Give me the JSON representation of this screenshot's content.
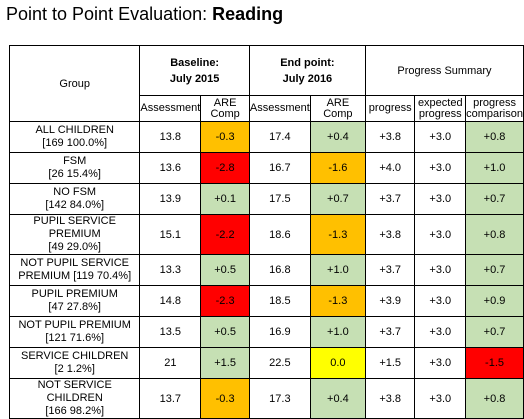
{
  "title": {
    "prefix": "Point to Point Evaluation: ",
    "emphasis": "Reading"
  },
  "headers": {
    "group": "Group",
    "baseline_l1": "Baseline:",
    "baseline_l2": "July 2015",
    "endpoint_l1": "End point:",
    "endpoint_l2": "July 2016",
    "summary": "Progress Summary",
    "sub": [
      "Assessment",
      "ARE Comp",
      "Assessment",
      "ARE Comp",
      "progress",
      "expected progress",
      "progress comparison"
    ]
  },
  "colors": {
    "green": "#c6e0b4",
    "orange": "#ffc000",
    "red": "#ff0000",
    "yellow": "#ffff00"
  },
  "rows": [
    {
      "l1": "ALL CHILDREN",
      "l2": "[169 100.0%]",
      "v": [
        "13.8",
        "-0.3",
        "17.4",
        "+0.4",
        "+3.8",
        "+3.0",
        "+0.8"
      ],
      "c": [
        "white",
        "orange",
        "white",
        "green",
        "white",
        "white",
        "green"
      ]
    },
    {
      "l1": "FSM",
      "l2": "[26 15.4%]",
      "v": [
        "13.6",
        "-2.8",
        "16.7",
        "-1.6",
        "+4.0",
        "+3.0",
        "+1.0"
      ],
      "c": [
        "white",
        "red",
        "white",
        "orange",
        "white",
        "white",
        "green"
      ]
    },
    {
      "l1": "NO FSM",
      "l2": "[142 84.0%]",
      "v": [
        "13.9",
        "+0.1",
        "17.5",
        "+0.7",
        "+3.7",
        "+3.0",
        "+0.7"
      ],
      "c": [
        "white",
        "green",
        "white",
        "green",
        "white",
        "white",
        "green"
      ]
    },
    {
      "l1": "PUPIL SERVICE PREMIUM",
      "l2": "[49 29.0%]",
      "v": [
        "15.1",
        "-2.2",
        "18.6",
        "-1.3",
        "+3.8",
        "+3.0",
        "+0.8"
      ],
      "c": [
        "white",
        "red",
        "white",
        "orange",
        "white",
        "white",
        "green"
      ]
    },
    {
      "l1": "NOT PUPIL SERVICE",
      "l2": "PREMIUM [119 70.4%]",
      "v": [
        "13.3",
        "+0.5",
        "16.8",
        "+1.0",
        "+3.7",
        "+3.0",
        "+0.7"
      ],
      "c": [
        "white",
        "green",
        "white",
        "green",
        "white",
        "white",
        "green"
      ]
    },
    {
      "l1": "PUPIL PREMIUM",
      "l2": "[47 27.8%]",
      "v": [
        "14.8",
        "-2.3",
        "18.5",
        "-1.3",
        "+3.9",
        "+3.0",
        "+0.9"
      ],
      "c": [
        "white",
        "red",
        "white",
        "orange",
        "white",
        "white",
        "green"
      ]
    },
    {
      "l1": "NOT PUPIL PREMIUM",
      "l2": "[121 71.6%]",
      "v": [
        "13.5",
        "+0.5",
        "16.9",
        "+1.0",
        "+3.7",
        "+3.0",
        "+0.7"
      ],
      "c": [
        "white",
        "green",
        "white",
        "green",
        "white",
        "white",
        "green"
      ]
    },
    {
      "l1": "SERVICE CHILDREN",
      "l2": "[2 1.2%]",
      "v": [
        "21",
        "+1.5",
        "22.5",
        "0.0",
        "+1.5",
        "+3.0",
        "-1.5"
      ],
      "c": [
        "white",
        "green",
        "white",
        "yellow",
        "white",
        "white",
        "red"
      ]
    },
    {
      "l1": "NOT SERVICE CHILDREN",
      "l2": "[166 98.2%]",
      "v": [
        "13.7",
        "-0.3",
        "17.3",
        "+0.4",
        "+3.8",
        "+3.0",
        "+0.8"
      ],
      "c": [
        "white",
        "orange",
        "white",
        "green",
        "white",
        "white",
        "green"
      ]
    }
  ]
}
